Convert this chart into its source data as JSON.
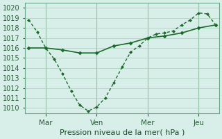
{
  "title": "Pression niveau de la mer( hPa )",
  "ylabel_values": [
    1010,
    1011,
    1012,
    1013,
    1014,
    1015,
    1016,
    1017,
    1018,
    1019,
    1020
  ],
  "ylim": [
    1009.5,
    1020.5
  ],
  "background_color": "#d8eee8",
  "grid_color": "#aaccbb",
  "line_color": "#1a6b2a",
  "xtick_labels": [
    "Mar",
    "Ven",
    "Mer",
    "Jeu"
  ],
  "xtick_positions": [
    1,
    4,
    7,
    10
  ],
  "line1_x": [
    0,
    0.5,
    1,
    1.5,
    2,
    2.5,
    3,
    3.5,
    4,
    4.5,
    5,
    5.5,
    6,
    6.5,
    7,
    7.5,
    8,
    8.5,
    9,
    9.5,
    10,
    10.5,
    11
  ],
  "line1_y": [
    1018.8,
    1017.6,
    1016.0,
    1014.9,
    1013.4,
    1011.7,
    1010.3,
    1009.7,
    1010.1,
    1011.0,
    1012.5,
    1014.1,
    1015.6,
    1016.2,
    1017.0,
    1017.4,
    1017.5,
    1017.7,
    1018.3,
    1018.8,
    1019.5,
    1019.4,
    1018.3
  ],
  "line2_x": [
    0,
    1,
    2,
    3,
    4,
    5,
    6,
    7,
    8,
    9,
    10,
    11
  ],
  "line2_y": [
    1016.0,
    1016.0,
    1015.8,
    1015.5,
    1015.5,
    1016.2,
    1016.5,
    1017.0,
    1017.2,
    1017.5,
    1018.0,
    1018.3
  ],
  "vline_positions": [
    1,
    4,
    7,
    10
  ],
  "xlabel": "Pression niveau de la mer( hPa )"
}
